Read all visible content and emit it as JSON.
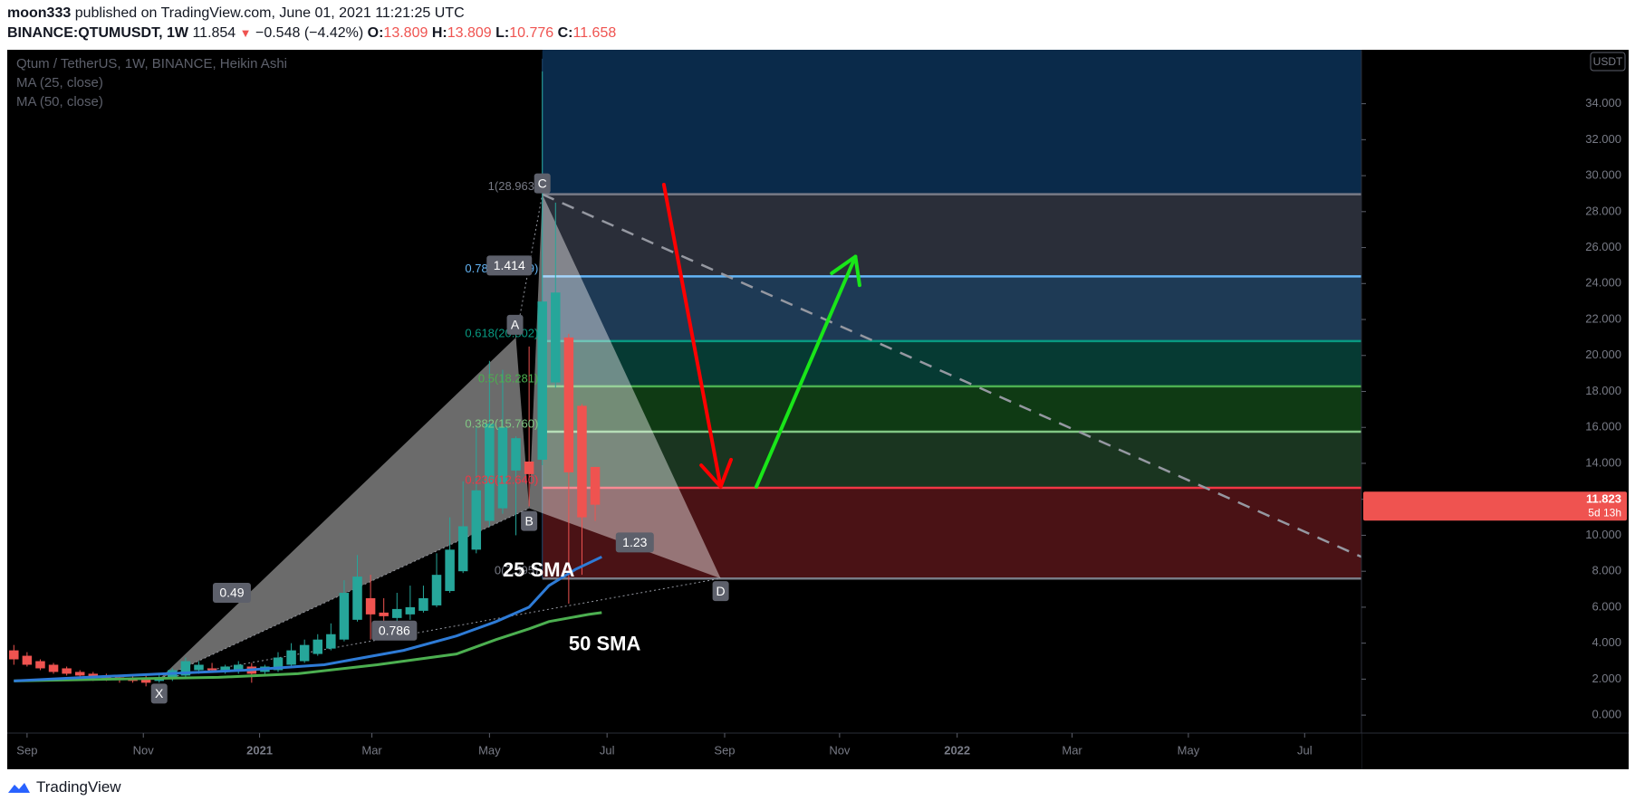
{
  "header": {
    "author": "moon333",
    "published_text": "published on TradingView.com, June 01, 2021 11:21:25 UTC",
    "symbol": "BINANCE:QTUMUSDT, 1W",
    "last": "11.854",
    "change": "−0.548 (−4.42%)",
    "o_label": "O:",
    "o": "13.809",
    "h_label": "H:",
    "h": "13.809",
    "l_label": "L:",
    "l": "10.776",
    "c_label": "C:",
    "c": "11.658"
  },
  "legend": {
    "title": "Qtum / TetherUS, 1W, BINANCE, Heikin Ashi",
    "ma25": "MA (25, close)",
    "ma50": "MA (50, close)"
  },
  "footer": {
    "brand": "TradingView"
  },
  "colors": {
    "bg": "#000000",
    "up": "#26a69a",
    "down": "#ef5350",
    "ma25": "#2e7bd6",
    "ma50": "#4caf50",
    "red_arrow": "#ff0000",
    "green_arrow": "#19e619"
  },
  "chart_data": {
    "type": "candlestick",
    "title": "Qtum / TetherUS, 1W, BINANCE, Heikin Ashi",
    "currency_badge": "USDT",
    "ylim": [
      -1,
      37
    ],
    "y_ticks": [
      0,
      2,
      4,
      6,
      8,
      10,
      12,
      14,
      16,
      18,
      20,
      22,
      24,
      26,
      28,
      30,
      32,
      34
    ],
    "y_tick_labels": [
      "0.000",
      "2.000",
      "4.000",
      "6.000",
      "8.000",
      "10.000",
      "12.000",
      "14.000",
      "16.000",
      "18.000",
      "20.000",
      "22.000",
      "24.000",
      "26.000",
      "28.000",
      "30.000",
      "32.000",
      "34.000"
    ],
    "x_ticks": [
      {
        "label": "Sep",
        "week": -52.5
      },
      {
        "label": "Nov",
        "week": -43.7
      },
      {
        "label": "2021",
        "week": -34.9
      },
      {
        "label": "Mar",
        "week": -26.4
      },
      {
        "label": "May",
        "week": -17.5
      },
      {
        "label": "Jul",
        "week": -8.6
      },
      {
        "label": "Sep",
        "week": 0.3
      },
      {
        "label": "Nov",
        "week": 9.0
      },
      {
        "label": "2022",
        "week": 17.9
      },
      {
        "label": "Mar",
        "week": 26.6
      },
      {
        "label": "May",
        "week": 35.4
      },
      {
        "label": "Jul",
        "week": 44.2
      }
    ],
    "x_range_weeks": [
      -54,
      48.5
    ],
    "candles": [
      {
        "w": -53.5,
        "o": 3.6,
        "h": 3.9,
        "l": 2.8,
        "c": 3.1
      },
      {
        "w": -52.5,
        "o": 3.3,
        "h": 3.5,
        "l": 2.7,
        "c": 2.8
      },
      {
        "w": -51.5,
        "o": 3.0,
        "h": 3.1,
        "l": 2.5,
        "c": 2.6
      },
      {
        "w": -50.5,
        "o": 2.8,
        "h": 2.9,
        "l": 2.3,
        "c": 2.4
      },
      {
        "w": -49.5,
        "o": 2.6,
        "h": 2.7,
        "l": 2.2,
        "c": 2.3
      },
      {
        "w": -48.5,
        "o": 2.4,
        "h": 2.5,
        "l": 2.0,
        "c": 2.2
      },
      {
        "w": -47.5,
        "o": 2.3,
        "h": 2.4,
        "l": 1.9,
        "c": 2.1
      },
      {
        "w": -46.5,
        "o": 2.2,
        "h": 2.3,
        "l": 1.9,
        "c": 2.0
      },
      {
        "w": -45.5,
        "o": 2.1,
        "h": 2.2,
        "l": 1.8,
        "c": 1.95
      },
      {
        "w": -44.5,
        "o": 2.05,
        "h": 2.2,
        "l": 1.8,
        "c": 1.9
      },
      {
        "w": -43.5,
        "o": 2.0,
        "h": 2.2,
        "l": 1.6,
        "c": 1.8
      },
      {
        "w": -42.5,
        "o": 1.9,
        "h": 2.3,
        "l": 1.8,
        "c": 2.1
      },
      {
        "w": -41.5,
        "o": 2.0,
        "h": 2.6,
        "l": 1.9,
        "c": 2.5
      },
      {
        "w": -40.5,
        "o": 2.2,
        "h": 3.2,
        "l": 2.1,
        "c": 3.0
      },
      {
        "w": -39.5,
        "o": 2.5,
        "h": 3.0,
        "l": 2.3,
        "c": 2.8
      },
      {
        "w": -38.5,
        "o": 2.6,
        "h": 2.9,
        "l": 2.4,
        "c": 2.5
      },
      {
        "w": -37.5,
        "o": 2.5,
        "h": 2.8,
        "l": 2.3,
        "c": 2.7
      },
      {
        "w": -36.5,
        "o": 2.5,
        "h": 3.0,
        "l": 2.3,
        "c": 2.8
      },
      {
        "w": -35.5,
        "o": 2.7,
        "h": 2.9,
        "l": 1.8,
        "c": 2.3
      },
      {
        "w": -34.5,
        "o": 2.4,
        "h": 2.8,
        "l": 2.2,
        "c": 2.7
      },
      {
        "w": -33.5,
        "o": 2.5,
        "h": 3.5,
        "l": 2.4,
        "c": 3.2
      },
      {
        "w": -32.5,
        "o": 2.8,
        "h": 4.0,
        "l": 2.7,
        "c": 3.6
      },
      {
        "w": -31.5,
        "o": 3.0,
        "h": 4.2,
        "l": 2.9,
        "c": 3.9
      },
      {
        "w": -30.5,
        "o": 3.4,
        "h": 4.5,
        "l": 3.3,
        "c": 4.2
      },
      {
        "w": -29.5,
        "o": 3.7,
        "h": 5.1,
        "l": 3.6,
        "c": 4.5
      },
      {
        "w": -28.5,
        "o": 4.2,
        "h": 7.5,
        "l": 4.1,
        "c": 6.8
      },
      {
        "w": -27.5,
        "o": 5.3,
        "h": 8.9,
        "l": 5.2,
        "c": 7.7
      },
      {
        "w": -26.5,
        "o": 6.5,
        "h": 7.8,
        "l": 4.2,
        "c": 5.6
      },
      {
        "w": -25.5,
        "o": 5.7,
        "h": 6.5,
        "l": 4.8,
        "c": 5.5
      },
      {
        "w": -24.5,
        "o": 5.4,
        "h": 6.8,
        "l": 5.0,
        "c": 5.9
      },
      {
        "w": -23.5,
        "o": 5.6,
        "h": 7.2,
        "l": 5.3,
        "c": 6.0
      },
      {
        "w": -22.5,
        "o": 5.8,
        "h": 7.2,
        "l": 5.7,
        "c": 6.5
      },
      {
        "w": -21.5,
        "o": 6.1,
        "h": 9.0,
        "l": 6.0,
        "c": 7.8
      },
      {
        "w": -20.5,
        "o": 6.9,
        "h": 11.0,
        "l": 6.8,
        "c": 9.2
      },
      {
        "w": -19.5,
        "o": 8.0,
        "h": 13.0,
        "l": 7.9,
        "c": 10.5
      },
      {
        "w": -18.5,
        "o": 9.2,
        "h": 16.0,
        "l": 9.0,
        "c": 12.5
      },
      {
        "w": -17.5,
        "o": 10.8,
        "h": 19.7,
        "l": 10.5,
        "c": 16.2
      },
      {
        "w": -16.5,
        "o": 11.5,
        "h": 19.2,
        "l": 11.2,
        "c": 16.0
      },
      {
        "w": -15.5,
        "o": 13.6,
        "h": 15.5,
        "l": 10.0,
        "c": 15.4
      },
      {
        "w": -14.5,
        "o": 14.1,
        "h": 20.5,
        "l": 11.6,
        "c": 13.4
      },
      {
        "w": -13.5,
        "o": 14.2,
        "h": 35.8,
        "l": 13.9,
        "c": 23.0
      },
      {
        "w": -12.5,
        "o": 18.5,
        "h": 28.5,
        "l": 18.2,
        "c": 23.5
      },
      {
        "w": -11.5,
        "o": 21.0,
        "h": 21.2,
        "l": 6.2,
        "c": 13.5
      },
      {
        "w": -10.5,
        "o": 17.2,
        "h": 17.3,
        "l": 7.8,
        "c": 11.0
      },
      {
        "w": -9.5,
        "o": 13.8,
        "h": 13.8,
        "l": 10.8,
        "c": 11.7
      }
    ],
    "ma25": [
      {
        "w": -53.5,
        "v": 1.9
      },
      {
        "w": -48,
        "v": 2.1
      },
      {
        "w": -42,
        "v": 2.3
      },
      {
        "w": -36,
        "v": 2.5
      },
      {
        "w": -30,
        "v": 2.8
      },
      {
        "w": -24,
        "v": 3.6
      },
      {
        "w": -20,
        "v": 4.4
      },
      {
        "w": -17,
        "v": 5.2
      },
      {
        "w": -14.5,
        "v": 6.0
      },
      {
        "w": -13,
        "v": 7.2
      },
      {
        "w": -11,
        "v": 8.1
      },
      {
        "w": -9,
        "v": 8.8
      }
    ],
    "ma50": [
      {
        "w": -53.5,
        "v": 1.9
      },
      {
        "w": -46,
        "v": 2.0
      },
      {
        "w": -38,
        "v": 2.1
      },
      {
        "w": -32,
        "v": 2.3
      },
      {
        "w": -26,
        "v": 2.8
      },
      {
        "w": -20,
        "v": 3.4
      },
      {
        "w": -17,
        "v": 4.2
      },
      {
        "w": -14.5,
        "v": 4.8
      },
      {
        "w": -13,
        "v": 5.2
      },
      {
        "w": -10,
        "v": 5.6
      },
      {
        "w": -9,
        "v": 5.7
      }
    ],
    "fib_levels": [
      {
        "ratio": "1",
        "price": "28.963",
        "value": 28.963,
        "color": "#787b86",
        "fill": "#2a2e39"
      },
      {
        "ratio": "0.786",
        "price": "24.399",
        "value": 24.399,
        "color": "#64b5f6",
        "fill": "#1e3a55"
      },
      {
        "ratio": "0.618",
        "price": "20.802",
        "value": 20.802,
        "color": "#089981",
        "fill": "#063a33"
      },
      {
        "ratio": "0.5",
        "price": "18.281",
        "value": 18.281,
        "color": "#4caf50",
        "fill": "#0f3a14"
      },
      {
        "ratio": "0.382",
        "price": "15.760",
        "value": 15.76,
        "color": "#81c784",
        "fill": "#1a3520"
      },
      {
        "ratio": "0.236",
        "price": "12.640",
        "value": 12.64,
        "color": "#f23645",
        "fill": "#4a1215"
      },
      {
        "ratio": "0",
        "price": "7.595",
        "value": 7.595,
        "color": "#787b86",
        "fill": null
      }
    ],
    "fib_labels_visible": [
      "1(28.963)",
      "0.786(24.399)",
      "0.618(20.802)",
      "0.5(18.281)",
      "0.382(15.760)",
      "0.236(12.640)",
      "0(7.595)"
    ],
    "harmonic_points": [
      {
        "label": "X",
        "w": -42.5,
        "v": 2.0
      },
      {
        "label": "A",
        "w": -15.5,
        "v": 21.0
      },
      {
        "label": "B",
        "w": -14.5,
        "v": 11.5
      },
      {
        "label": "C",
        "w": -13.5,
        "v": 28.963
      },
      {
        "label": "D",
        "w": 0.0,
        "v": 7.6
      }
    ],
    "harmonic_ratios": [
      {
        "text": "0.49",
        "w": -37.0,
        "v": 6.8
      },
      {
        "text": "1.414",
        "w": -16.0,
        "v": 25.0
      },
      {
        "text": "1.23",
        "w": -6.5,
        "v": 9.6
      },
      {
        "text": "0.786",
        "w": -24.7,
        "v": 4.7
      }
    ],
    "trendline": [
      {
        "w": -13.5,
        "v": 28.963
      },
      {
        "w": 48.5,
        "v": 8.8
      }
    ],
    "annotations": [
      {
        "text": "25 SMA",
        "w": -16.5,
        "v": 8.0
      },
      {
        "text": "50 SMA",
        "w": -11.5,
        "v": 3.9
      }
    ],
    "arrows": [
      {
        "color": "red",
        "from": {
          "w": -4.3,
          "v": 29.5
        },
        "to": {
          "w": 0.0,
          "v": 12.7
        }
      },
      {
        "color": "green",
        "from": {
          "w": 2.7,
          "v": 12.7
        },
        "to": {
          "w": 10.2,
          "v": 25.5
        }
      }
    ],
    "price_tag": {
      "price": "11.823",
      "countdown": "5d 13h",
      "value": 11.823
    }
  }
}
